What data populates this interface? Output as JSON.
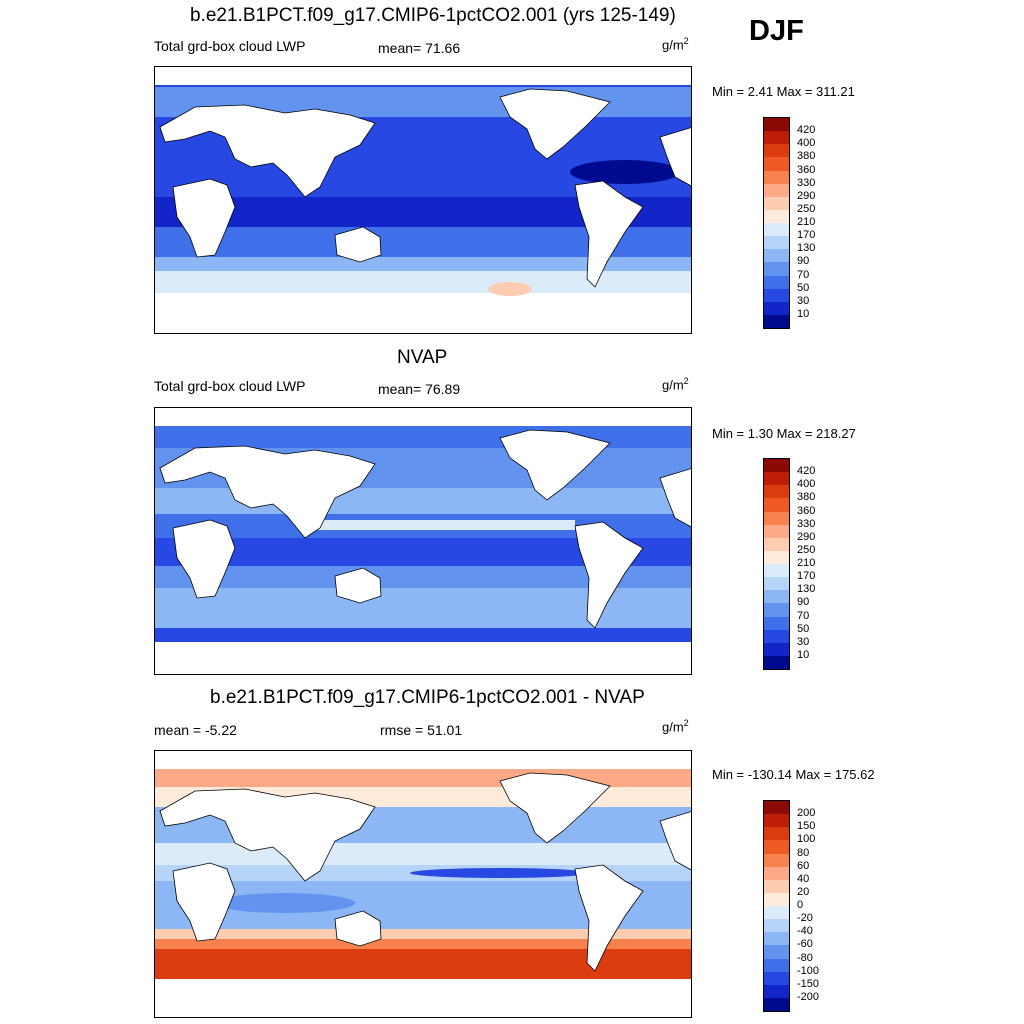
{
  "season": "DJF",
  "panels": [
    {
      "id": "model",
      "title": "b.e21.B1PCT.f09_g17.CMIP6-1pctCO2.001 (yrs 125-149)",
      "left_label": "Total grd-box cloud LWP",
      "center_label": "mean=  71.66",
      "units": {
        "base": "g/m",
        "sup": "2"
      },
      "minmax": "Min =   2.41 Max = 311.21",
      "colorbar": {
        "labels": [
          "420",
          "400",
          "380",
          "360",
          "330",
          "290",
          "250",
          "210",
          "170",
          "130",
          "90",
          "70",
          "50",
          "30",
          "10"
        ],
        "colors": [
          "#8b0a05",
          "#bf1d07",
          "#dd3b10",
          "#f05a24",
          "#f7824e",
          "#fba987",
          "#fdcdb2",
          "#feebdc",
          "#dcebfa",
          "#b6d3f8",
          "#8db6f5",
          "#6294ef",
          "#3f70ea",
          "#2748e2",
          "#1125c8",
          "#000a8f"
        ]
      }
    },
    {
      "id": "obs",
      "title": "NVAP",
      "left_label": "Total grd-box cloud LWP",
      "center_label": "mean=  76.89",
      "units": {
        "base": "g/m",
        "sup": "2"
      },
      "minmax": "Min =   1.30 Max = 218.27",
      "colorbar": {
        "labels": [
          "420",
          "400",
          "380",
          "360",
          "330",
          "290",
          "250",
          "210",
          "170",
          "130",
          "90",
          "70",
          "50",
          "30",
          "10"
        ],
        "colors": [
          "#8b0a05",
          "#bf1d07",
          "#dd3b10",
          "#f05a24",
          "#f7824e",
          "#fba987",
          "#fdcdb2",
          "#feebdc",
          "#dcebfa",
          "#b6d3f8",
          "#8db6f5",
          "#6294ef",
          "#3f70ea",
          "#2748e2",
          "#1125c8",
          "#000a8f"
        ]
      }
    },
    {
      "id": "diff",
      "title": "b.e21.B1PCT.f09_g17.CMIP6-1pctCO2.001 - NVAP",
      "left_label": "mean =  -5.22",
      "center_label": "rmse =  51.01",
      "units": {
        "base": "g/m",
        "sup": "2"
      },
      "minmax": "Min = -130.14 Max = 175.62",
      "colorbar": {
        "labels": [
          "200",
          "150",
          "100",
          "80",
          "60",
          "40",
          "20",
          "0",
          "-20",
          "-40",
          "-60",
          "-80",
          "-100",
          "-150",
          "-200"
        ],
        "colors": [
          "#8b0a05",
          "#bf1d07",
          "#dd3b10",
          "#f05a24",
          "#f7824e",
          "#fba987",
          "#fdcdb2",
          "#feebdc",
          "#dcebfa",
          "#b6d3f8",
          "#8db6f5",
          "#6294ef",
          "#3f70ea",
          "#2748e2",
          "#1125c8",
          "#000a8f"
        ]
      }
    }
  ]
}
